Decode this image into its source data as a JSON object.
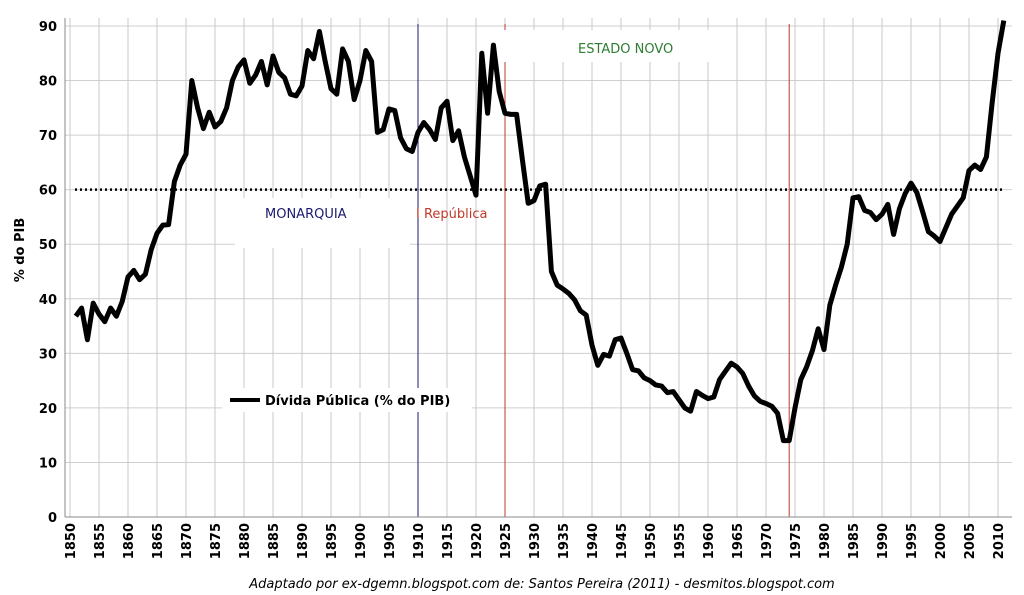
{
  "chart_data": {
    "type": "line",
    "ylabel": "% do PIB",
    "xlabel": "",
    "ylim": [
      0,
      90
    ],
    "xlim": [
      1850,
      2012
    ],
    "yticks": [
      0,
      10,
      20,
      30,
      40,
      50,
      60,
      70,
      80,
      90
    ],
    "xticks": [
      1850,
      1855,
      1860,
      1865,
      1870,
      1875,
      1880,
      1885,
      1890,
      1895,
      1900,
      1905,
      1910,
      1915,
      1920,
      1925,
      1930,
      1935,
      1940,
      1945,
      1950,
      1955,
      1960,
      1965,
      1970,
      1975,
      1980,
      1985,
      1990,
      1995,
      2000,
      2005,
      2010
    ],
    "grid": true,
    "legend_placement": "bottom-left",
    "series": [
      {
        "name": "Dívida Pública (% do PIB)",
        "color": "#000000",
        "x": [
          1851,
          1852,
          1853,
          1854,
          1855,
          1856,
          1857,
          1858,
          1859,
          1860,
          1861,
          1862,
          1863,
          1864,
          1865,
          1866,
          1867,
          1868,
          1869,
          1870,
          1871,
          1872,
          1873,
          1874,
          1875,
          1876,
          1877,
          1878,
          1879,
          1880,
          1881,
          1882,
          1883,
          1884,
          1885,
          1886,
          1887,
          1888,
          1889,
          1890,
          1891,
          1892,
          1893,
          1894,
          1895,
          1896,
          1897,
          1898,
          1899,
          1900,
          1901,
          1902,
          1903,
          1904,
          1905,
          1906,
          1907,
          1908,
          1909,
          1910,
          1911,
          1912,
          1913,
          1914,
          1915,
          1916,
          1917,
          1918,
          1919,
          1920,
          1921,
          1922,
          1923,
          1924,
          1925,
          1926,
          1927,
          1928,
          1929,
          1930,
          1931,
          1932,
          1933,
          1934,
          1935,
          1936,
          1937,
          1938,
          1939,
          1940,
          1941,
          1942,
          1943,
          1944,
          1945,
          1946,
          1947,
          1948,
          1949,
          1950,
          1951,
          1952,
          1953,
          1954,
          1955,
          1956,
          1957,
          1958,
          1959,
          1960,
          1961,
          1962,
          1963,
          1964,
          1965,
          1966,
          1967,
          1968,
          1969,
          1970,
          1971,
          1972,
          1973,
          1974,
          1975,
          1976,
          1977,
          1978,
          1979,
          1980,
          1981,
          1982,
          1983,
          1984,
          1985,
          1986,
          1987,
          1988,
          1989,
          1990,
          1991,
          1992,
          1993,
          1994,
          1995,
          1996,
          1997,
          1998,
          1999,
          2000,
          2001,
          2002,
          2003,
          2004,
          2005,
          2006,
          2007,
          2008,
          2009,
          2010,
          2011
        ],
        "values": [
          36.8,
          38.3,
          32.5,
          39.2,
          37.2,
          35.8,
          38.3,
          36.8,
          39.5,
          44,
          45.2,
          43.5,
          44.5,
          49,
          52,
          53.5,
          53.6,
          61.5,
          64.5,
          66.5,
          80,
          75,
          71.2,
          74.2,
          71.5,
          72.5,
          75,
          80,
          82.5,
          83.8,
          79.5,
          81,
          83.5,
          79.2,
          84.5,
          81.5,
          80.5,
          77.5,
          77.2,
          79,
          85.5,
          84,
          89,
          83.5,
          78.5,
          77.5,
          85.8,
          83.5,
          76.5,
          80,
          85.5,
          83.5,
          70.5,
          71,
          74.8,
          74.5,
          69.5,
          67.5,
          67,
          70.5,
          72.3,
          71,
          69.2,
          75,
          76.2,
          69,
          70.8,
          66,
          62.5,
          59,
          85,
          74,
          86.5,
          78,
          74,
          73.8,
          73.8,
          65.5,
          57.5,
          58,
          60.7,
          61,
          45,
          42.5,
          41.8,
          41,
          39.8,
          37.8,
          37,
          31.5,
          27.8,
          29.8,
          29.5,
          32.5,
          32.8,
          30,
          27,
          26.8,
          25.5,
          25,
          24.2,
          24,
          22.8,
          23,
          21.5,
          20,
          19.4,
          23,
          22.3,
          21.7,
          22,
          25.2,
          26.7,
          28.2,
          27.5,
          26.3,
          24,
          22.2,
          21.2,
          20.8,
          20.3,
          19,
          14,
          14,
          20,
          25.2,
          27.5,
          30.5,
          34.5,
          30.7,
          38.8,
          42.5,
          45.8,
          50,
          58.5,
          58.7,
          56.2,
          55.8,
          54.5,
          55.5,
          57.3,
          51.8,
          56.5,
          59.3,
          61.2,
          59.5,
          56,
          52.3,
          51.5,
          50.5,
          53,
          55.5,
          57,
          58.5,
          63.5,
          64.5,
          63.7,
          66,
          76,
          85,
          91
        ]
      }
    ],
    "reference_line": {
      "y": 60,
      "style": "dotted",
      "color": "#000000"
    },
    "period_markers": [
      {
        "year": 1910,
        "color": "#1a1a6e"
      },
      {
        "year": 1925,
        "color": "#c0392b"
      },
      {
        "year": 1974,
        "color": "#c0392b"
      }
    ],
    "annotations": [
      {
        "text": "MONARQUIA",
        "color": "#1a1a6e"
      },
      {
        "text": "I República",
        "color": "#c0392b"
      },
      {
        "text": "ESTADO NOVO",
        "color": "#2e7d32"
      }
    ],
    "footer": "Adaptado por ex-dgemn.blogspot.com de: Santos Pereira (2011) - desmitos.blogspot.com"
  }
}
